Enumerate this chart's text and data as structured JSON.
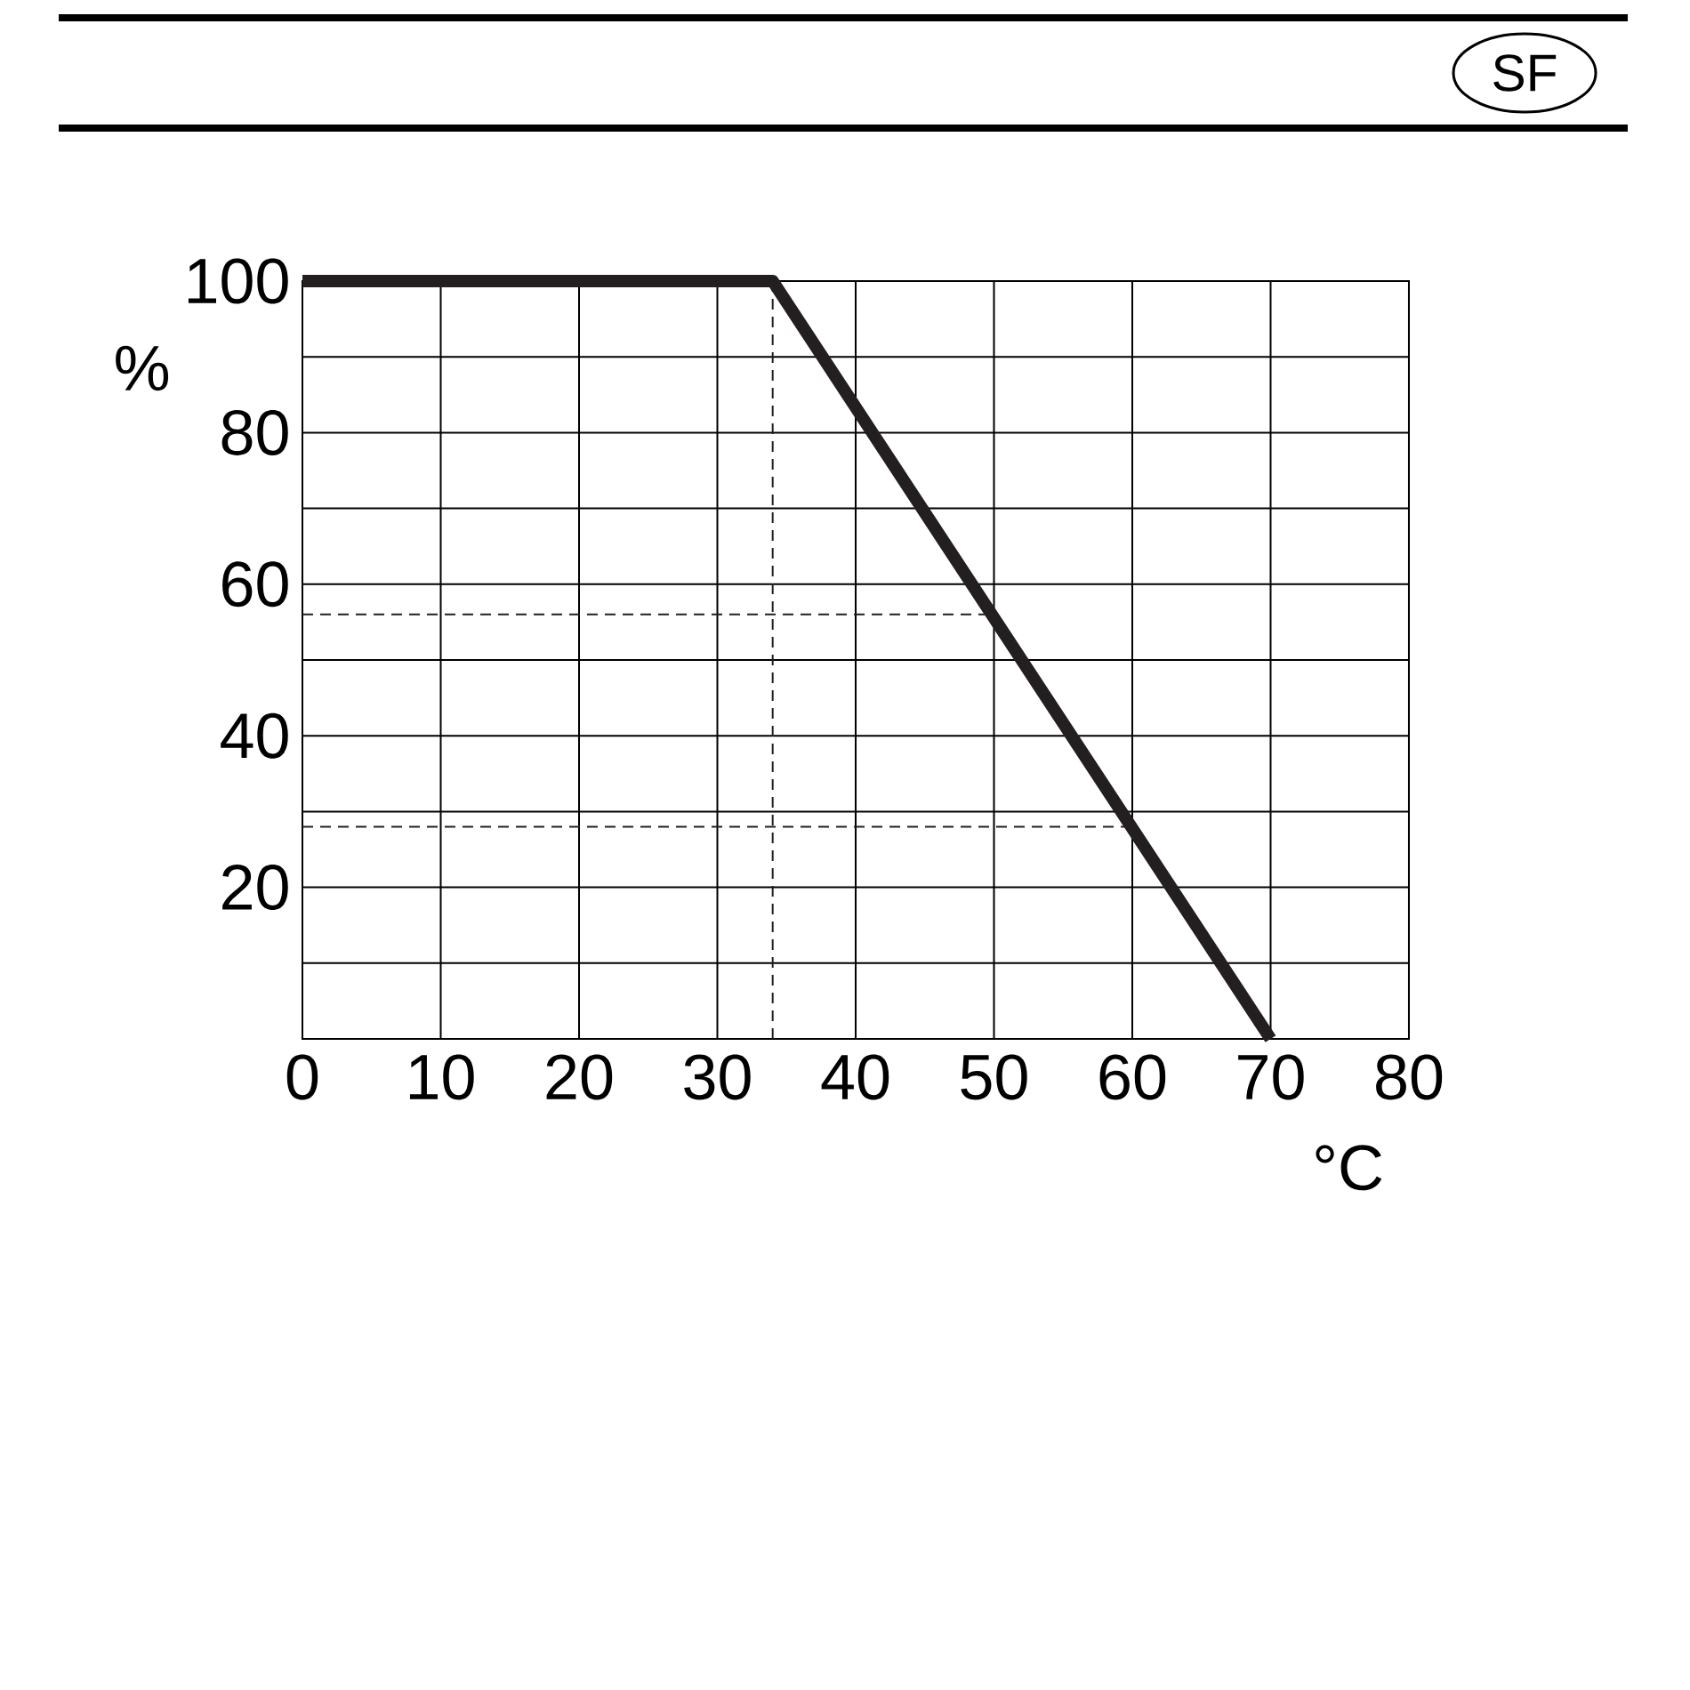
{
  "chart_data": {
    "type": "line",
    "x": [
      0,
      34,
      70
    ],
    "series": [
      {
        "color": "#231f20",
        "values": [
          100,
          100,
          0
        ]
      }
    ],
    "xlabel": "°C",
    "ylabel": "%",
    "xlim": [
      0,
      80
    ],
    "ylim": [
      0,
      100
    ],
    "xticks": [
      0,
      10,
      20,
      30,
      40,
      50,
      60,
      70,
      80
    ],
    "yticks": [
      {
        "value": 10,
        "label": null
      },
      20,
      {
        "value": 30,
        "label": null
      },
      40,
      {
        "value": 50,
        "label": null
      },
      60,
      {
        "value": 70,
        "label": null
      },
      80,
      {
        "value": 90,
        "label": null
      },
      100
    ],
    "grid": true,
    "line_style": "solid",
    "marker": "none",
    "ref_lines": [
      {
        "axis": "x",
        "value": 34,
        "color": "#231f20",
        "line_style": "dashed"
      },
      {
        "axis": "y",
        "value": 56,
        "color": "#231f20",
        "line_style": "dashed"
      },
      {
        "axis": "y",
        "value": 28,
        "color": "#231f20",
        "line_style": "dashed"
      }
    ],
    "annotations": [
      "SF"
    ]
  }
}
